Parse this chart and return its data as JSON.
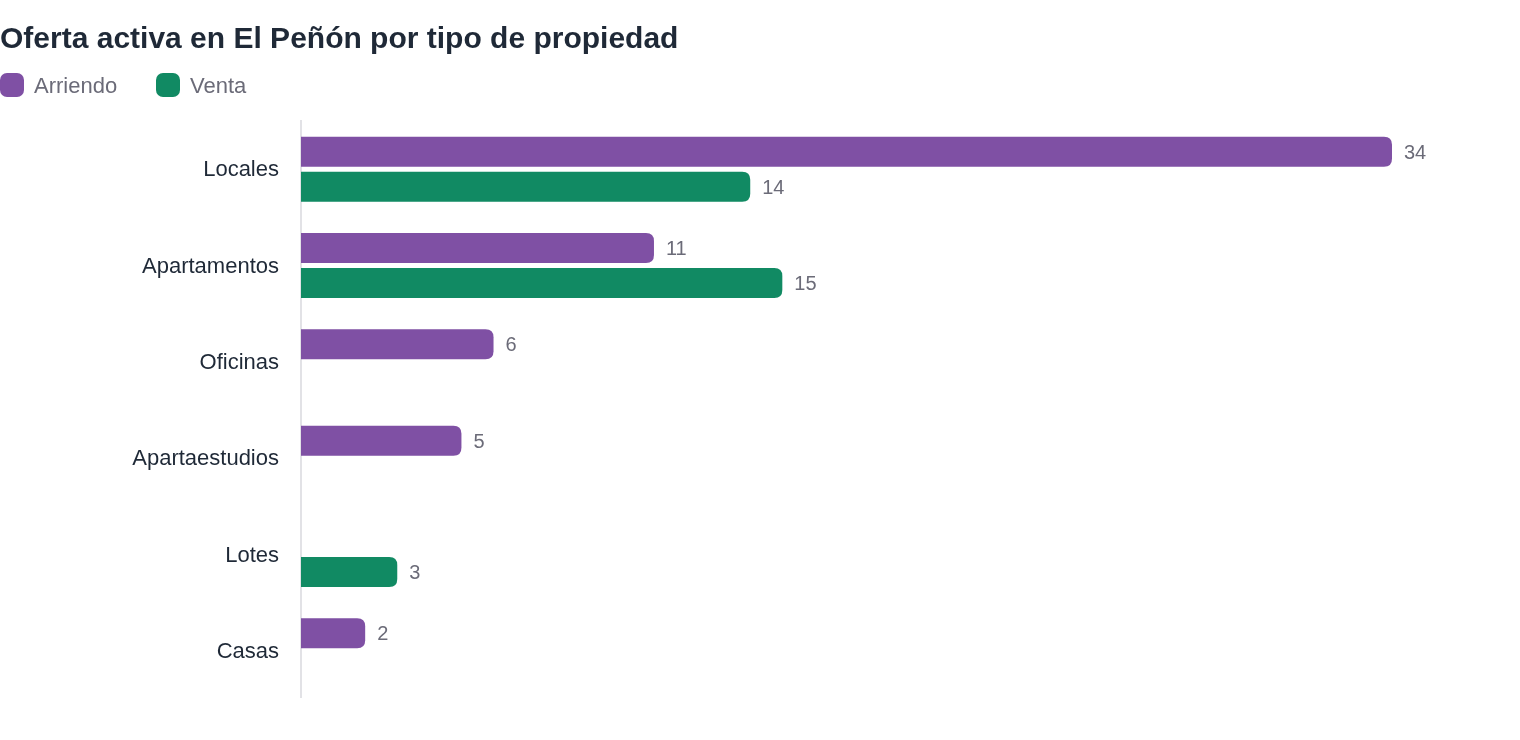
{
  "chart_data": {
    "type": "bar",
    "orientation": "horizontal",
    "title": "Oferta activa en El Peñón por tipo de propiedad",
    "categories": [
      "Locales",
      "Apartamentos",
      "Oficinas",
      "Apartaestudios",
      "Lotes",
      "Casas"
    ],
    "series": [
      {
        "name": "Arriendo",
        "color": "#7f50a4",
        "values": [
          34,
          11,
          6,
          5,
          null,
          2
        ]
      },
      {
        "name": "Venta",
        "color": "#118a63",
        "values": [
          14,
          15,
          null,
          null,
          3,
          null
        ]
      }
    ],
    "data_labels": true,
    "legend": "top left"
  }
}
